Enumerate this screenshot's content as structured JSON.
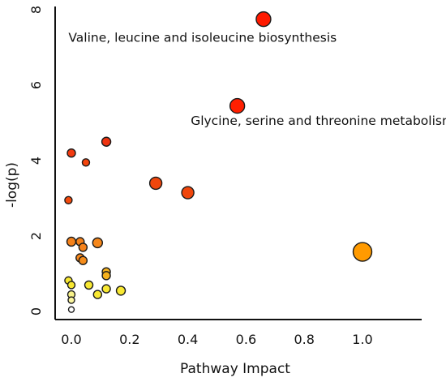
{
  "chart_data": {
    "type": "scatter",
    "title": "",
    "xlabel": "Pathway Impact",
    "ylabel": "-log(p)",
    "xlim": [
      -0.03,
      1.2
    ],
    "ylim": [
      -0.3,
      8.2
    ],
    "xticks": [
      0.0,
      0.2,
      0.4,
      0.6,
      0.8,
      1.0
    ],
    "xtick_labels": [
      "0.0",
      "0.2",
      "0.4",
      "0.6",
      "0.8",
      "1.0"
    ],
    "yticks": [
      0,
      2,
      4,
      6,
      8
    ],
    "ytick_labels": [
      "0",
      "2",
      "4",
      "6",
      "8"
    ],
    "grid": false,
    "points": [
      {
        "x": 0.66,
        "y": 7.75,
        "size": 1.8,
        "color": "#ff1a00"
      },
      {
        "x": 0.57,
        "y": 5.45,
        "size": 1.8,
        "color": "#ff1f00"
      },
      {
        "x": 1.0,
        "y": 1.58,
        "size": 2.3,
        "color": "#ff9a00"
      },
      {
        "x": 0.29,
        "y": 3.4,
        "size": 1.5,
        "color": "#f0460c"
      },
      {
        "x": 0.4,
        "y": 3.15,
        "size": 1.5,
        "color": "#f0460c"
      },
      {
        "x": 0.12,
        "y": 4.5,
        "size": 1.1,
        "color": "#ee3310"
      },
      {
        "x": 0.0,
        "y": 4.2,
        "size": 1.0,
        "color": "#f23a10"
      },
      {
        "x": 0.05,
        "y": 3.95,
        "size": 0.9,
        "color": "#f4450c"
      },
      {
        "x": -0.01,
        "y": 2.95,
        "size": 0.9,
        "color": "#f44a0c"
      },
      {
        "x": 0.0,
        "y": 1.85,
        "size": 1.1,
        "color": "#f5821b"
      },
      {
        "x": 0.03,
        "y": 1.85,
        "size": 1.0,
        "color": "#f5821b"
      },
      {
        "x": 0.09,
        "y": 1.82,
        "size": 1.2,
        "color": "#f5871b"
      },
      {
        "x": 0.04,
        "y": 1.7,
        "size": 1.0,
        "color": "#f5821b"
      },
      {
        "x": 0.03,
        "y": 1.42,
        "size": 1.0,
        "color": "#f5871b"
      },
      {
        "x": 0.04,
        "y": 1.35,
        "size": 1.0,
        "color": "#f58c1b"
      },
      {
        "x": 0.12,
        "y": 1.05,
        "size": 1.0,
        "color": "#f7b21e"
      },
      {
        "x": 0.12,
        "y": 0.95,
        "size": 1.0,
        "color": "#f7b21e"
      },
      {
        "x": -0.01,
        "y": 0.82,
        "size": 0.9,
        "color": "#f8e832"
      },
      {
        "x": 0.0,
        "y": 0.7,
        "size": 0.9,
        "color": "#f8e832"
      },
      {
        "x": 0.06,
        "y": 0.7,
        "size": 1.0,
        "color": "#f8e832"
      },
      {
        "x": 0.12,
        "y": 0.6,
        "size": 1.0,
        "color": "#f8e832"
      },
      {
        "x": 0.17,
        "y": 0.55,
        "size": 1.1,
        "color": "#f8e832"
      },
      {
        "x": 0.0,
        "y": 0.45,
        "size": 0.9,
        "color": "#f8f28a"
      },
      {
        "x": 0.09,
        "y": 0.45,
        "size": 1.0,
        "color": "#f8e832"
      },
      {
        "x": 0.0,
        "y": 0.3,
        "size": 0.8,
        "color": "#fbf6a0"
      },
      {
        "x": 0.0,
        "y": 0.05,
        "size": 0.7,
        "color": "#ffffff"
      }
    ],
    "annotations": [
      {
        "text": "Valine, leucine and isoleucine biosynthesis",
        "x": -0.01,
        "y": 7.15
      },
      {
        "text": "Glycine, serine and threonine metabolism",
        "x": 0.41,
        "y": 4.95
      }
    ]
  }
}
